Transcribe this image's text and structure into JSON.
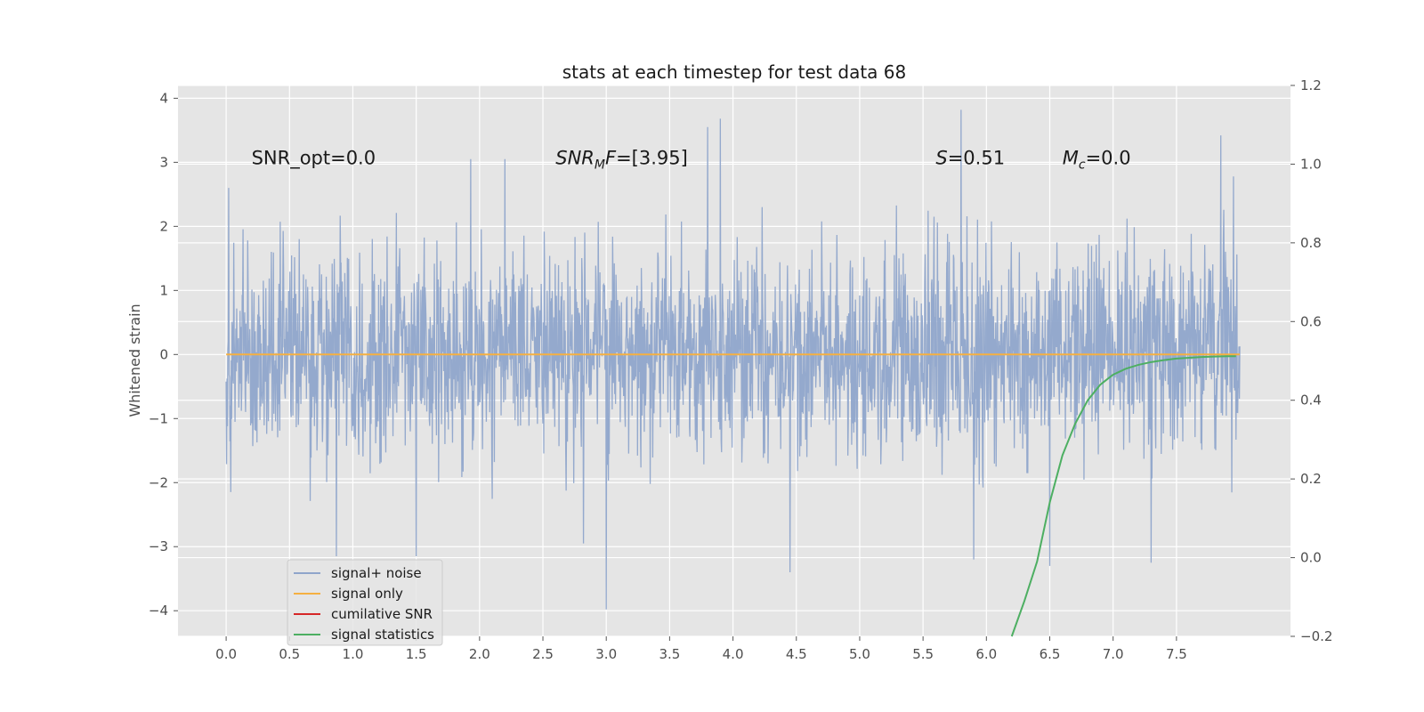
{
  "chart_data": {
    "type": "line",
    "title": "stats at each timestep for test data 68",
    "xlabel": "",
    "ylabel": "Whitened strain",
    "y2label": "",
    "xlim": [
      -0.38,
      8.4
    ],
    "ylim": [
      -4.4,
      4.2
    ],
    "y2lim": [
      -0.2,
      1.2
    ],
    "xticks": [
      "0.0",
      "0.5",
      "1.0",
      "1.5",
      "2.0",
      "2.5",
      "3.0",
      "3.5",
      "4.0",
      "4.5",
      "5.0",
      "5.5",
      "6.0",
      "6.5",
      "7.0",
      "7.5"
    ],
    "yticks": [
      "4",
      "3",
      "2",
      "1",
      "0",
      "−1",
      "−2",
      "−3",
      "−4"
    ],
    "y2ticks": [
      "1.2",
      "1.0",
      "0.8",
      "0.6",
      "0.4",
      "0.2",
      "0.0",
      "−0.2"
    ],
    "grid": true,
    "legend_position": "lower-left",
    "annotations": [
      {
        "text": "SNR_opt=0.0",
        "x": 0.2,
        "y": 3.0
      },
      {
        "text": "SNR_MF=[3.95]",
        "x": 2.6,
        "y": 3.0
      },
      {
        "text": "S=0.51",
        "x": 5.6,
        "y": 3.0
      },
      {
        "text": "M_c=0.0",
        "x": 6.6,
        "y": 3.0
      }
    ],
    "series": [
      {
        "name": "signal+ noise",
        "color": "#8fa5cb",
        "axis": "left",
        "description": "dense noise trace from t=0 to t=8",
        "x_range": [
          0.0,
          8.0
        ],
        "extreme_values": {
          "max": 3.82,
          "min": -3.98,
          "typical_envelope": [
            -2.4,
            2.4
          ]
        },
        "peaks": [
          [
            0.02,
            2.6
          ],
          [
            0.87,
            -3.15
          ],
          [
            1.5,
            -3.15
          ],
          [
            1.93,
            3.05
          ],
          [
            2.2,
            3.05
          ],
          [
            2.82,
            -2.95
          ],
          [
            3.0,
            -3.98
          ],
          [
            3.8,
            3.55
          ],
          [
            3.9,
            3.68
          ],
          [
            4.45,
            -3.4
          ],
          [
            5.8,
            3.82
          ],
          [
            5.9,
            -3.2
          ],
          [
            6.5,
            -3.3
          ],
          [
            7.3,
            -3.25
          ],
          [
            7.85,
            3.42
          ],
          [
            7.95,
            2.78
          ]
        ]
      },
      {
        "name": "signal only",
        "color": "#f5b041",
        "axis": "left",
        "x": [
          0.0,
          8.0
        ],
        "y": [
          0.0,
          0.0
        ]
      },
      {
        "name": "cumilative SNR",
        "color": "#d62728",
        "axis": "right",
        "x": [],
        "y": []
      },
      {
        "name": "signal statistics",
        "color": "#4daf62",
        "axis": "right",
        "x": [
          6.2,
          6.3,
          6.4,
          6.5,
          6.6,
          6.7,
          6.8,
          6.9,
          7.0,
          7.1,
          7.2,
          7.3,
          7.4,
          7.5,
          7.6,
          7.7,
          7.8,
          7.9,
          7.97
        ],
        "y": [
          -0.2,
          -0.11,
          -0.01,
          0.14,
          0.26,
          0.34,
          0.4,
          0.44,
          0.465,
          0.48,
          0.49,
          0.497,
          0.502,
          0.506,
          0.508,
          0.51,
          0.511,
          0.512,
          0.512
        ]
      }
    ]
  }
}
